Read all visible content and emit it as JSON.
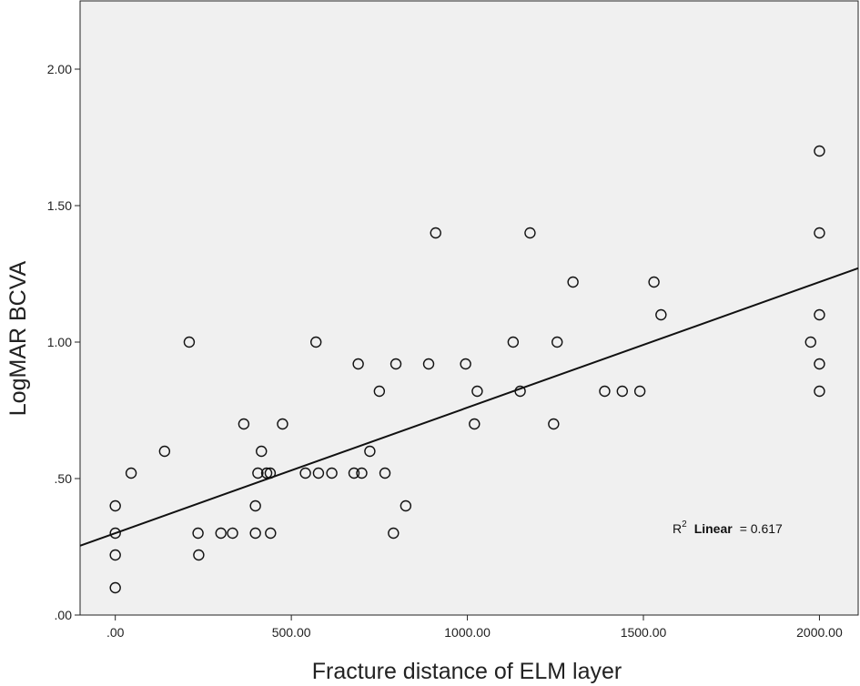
{
  "chart_data": {
    "type": "scatter",
    "xlabel": "Fracture distance of ELM layer",
    "ylabel": "LogMAR BCVA",
    "xlim": [
      -100,
      2110
    ],
    "ylim": [
      0,
      2.25
    ],
    "xticks": [
      0,
      500,
      1000,
      1500,
      2000
    ],
    "xtick_labels": [
      ".00",
      "500.00",
      "1000.00",
      "1500.00",
      "2000.00"
    ],
    "yticks": [
      0,
      0.5,
      1.0,
      1.5,
      2.0
    ],
    "ytick_labels": [
      ".00",
      ".50",
      "1.00",
      "1.50",
      "2.00"
    ],
    "grid": false,
    "plot_background": "#f0f0f0",
    "marker": "open-circle",
    "points": [
      [
        0,
        0.1
      ],
      [
        0,
        0.22
      ],
      [
        0,
        0.3
      ],
      [
        0,
        0.4
      ],
      [
        45,
        0.52
      ],
      [
        140,
        0.6
      ],
      [
        210,
        1.0
      ],
      [
        235,
        0.3
      ],
      [
        237,
        0.22
      ],
      [
        300,
        0.3
      ],
      [
        333,
        0.3
      ],
      [
        365,
        0.7
      ],
      [
        398,
        0.3
      ],
      [
        398,
        0.4
      ],
      [
        405,
        0.52
      ],
      [
        415,
        0.6
      ],
      [
        430,
        0.52
      ],
      [
        440,
        0.52
      ],
      [
        441,
        0.3
      ],
      [
        475,
        0.7
      ],
      [
        540,
        0.52
      ],
      [
        570,
        1.0
      ],
      [
        577,
        0.52
      ],
      [
        615,
        0.52
      ],
      [
        678,
        0.52
      ],
      [
        690,
        0.92
      ],
      [
        700,
        0.52
      ],
      [
        723,
        0.6
      ],
      [
        750,
        0.82
      ],
      [
        766,
        0.52
      ],
      [
        790,
        0.3
      ],
      [
        797,
        0.92
      ],
      [
        825,
        0.4
      ],
      [
        890,
        0.92
      ],
      [
        910,
        1.4
      ],
      [
        995,
        0.92
      ],
      [
        1020,
        0.7
      ],
      [
        1028,
        0.82
      ],
      [
        1130,
        1.0
      ],
      [
        1150,
        0.82
      ],
      [
        1178,
        1.4
      ],
      [
        1245,
        0.7
      ],
      [
        1255,
        1.0
      ],
      [
        1300,
        1.22
      ],
      [
        1390,
        0.82
      ],
      [
        1440,
        0.82
      ],
      [
        1490,
        0.82
      ],
      [
        1530,
        1.22
      ],
      [
        1550,
        1.1
      ],
      [
        1975,
        1.0
      ],
      [
        2000,
        0.82
      ],
      [
        2000,
        0.92
      ],
      [
        2000,
        1.1
      ],
      [
        2000,
        1.4
      ],
      [
        2000,
        1.7
      ]
    ],
    "fit_line": {
      "type": "linear",
      "intercept": 0.3,
      "slope": 0.00046
    },
    "annotation": {
      "r2_prefix": "R",
      "r2_sup": "2",
      "r2_label": "Linear",
      "r2_value": "= 0.617"
    }
  }
}
